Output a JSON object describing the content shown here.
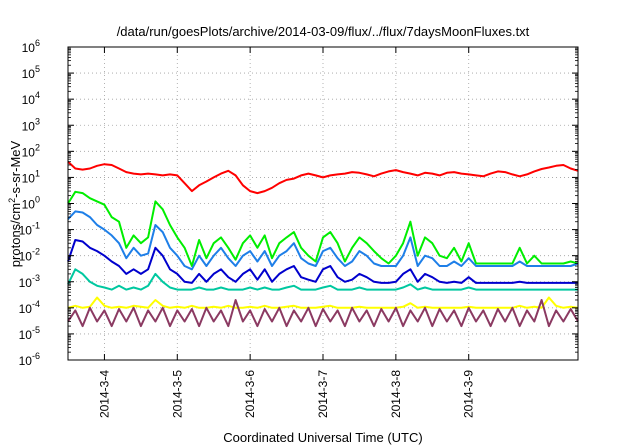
{
  "chart_data": {
    "type": "line",
    "title": "/data/run/goesPlots/archive/2014-03-09/flux/../flux/7daysMoonFluxes.txt",
    "xlabel": "Coordinated Universal Time (UTC)",
    "ylabel": {
      "pre": "protons/cm",
      "sup": "2",
      "post": "-s-sr-MeV"
    },
    "y_scale": "log",
    "ylim": [
      1e-06,
      1000000.0
    ],
    "xlim": [
      3.0,
      10.0
    ],
    "y_ticks": [
      {
        "base": "10",
        "exp": "-6",
        "value": 1e-06
      },
      {
        "base": "10",
        "exp": "-5",
        "value": 1e-05
      },
      {
        "base": "10",
        "exp": "-4",
        "value": 0.0001
      },
      {
        "base": "10",
        "exp": "-3",
        "value": 0.001
      },
      {
        "base": "10",
        "exp": "-2",
        "value": 0.01
      },
      {
        "base": "10",
        "exp": "-1",
        "value": 0.1
      },
      {
        "base": "10",
        "exp": "0",
        "value": 1
      },
      {
        "base": "10",
        "exp": "1",
        "value": 10
      },
      {
        "base": "10",
        "exp": "2",
        "value": 100
      },
      {
        "base": "10",
        "exp": "3",
        "value": 1000
      },
      {
        "base": "10",
        "exp": "4",
        "value": 10000
      },
      {
        "base": "10",
        "exp": "5",
        "value": 100000
      },
      {
        "base": "10",
        "exp": "6",
        "value": 1000000
      }
    ],
    "x_ticks": [
      {
        "label": "2014-3-4",
        "value": 3.5
      },
      {
        "label": "2014-3-5",
        "value": 4.5
      },
      {
        "label": "2014-3-6",
        "value": 5.5
      },
      {
        "label": "2014-3-7",
        "value": 6.5
      },
      {
        "label": "2014-3-8",
        "value": 7.5
      },
      {
        "label": "2014-3-9",
        "value": 8.5
      }
    ],
    "grid": true,
    "series": [
      {
        "color": "#ff0000",
        "x": [
          3.0,
          3.1,
          3.2,
          3.3,
          3.4,
          3.5,
          3.6,
          3.7,
          3.8,
          3.9,
          4.0,
          4.1,
          4.2,
          4.3,
          4.4,
          4.5,
          4.6,
          4.7,
          4.8,
          4.9,
          5.0,
          5.1,
          5.2,
          5.3,
          5.4,
          5.5,
          5.6,
          5.7,
          5.8,
          5.9,
          6.0,
          6.1,
          6.2,
          6.3,
          6.4,
          6.5,
          6.6,
          6.7,
          6.8,
          6.9,
          7.0,
          7.1,
          7.2,
          7.3,
          7.4,
          7.5,
          7.6,
          7.7,
          7.8,
          7.9,
          8.0,
          8.1,
          8.2,
          8.3,
          8.4,
          8.5,
          8.6,
          8.7,
          8.8,
          8.9,
          9.0,
          9.1,
          9.2,
          9.3,
          9.4,
          9.5,
          9.6,
          9.7,
          9.8,
          9.9,
          10.0
        ],
        "y": [
          40,
          22,
          20,
          22,
          28,
          32,
          30,
          22,
          16,
          14,
          13,
          14,
          13,
          12,
          13,
          12,
          6,
          3,
          5,
          7,
          10,
          14,
          18,
          12,
          5,
          3,
          2.5,
          3,
          4,
          6,
          8,
          9,
          12,
          14,
          12,
          10,
          12,
          13,
          14,
          16,
          15,
          13,
          11,
          14,
          17,
          19,
          16,
          14,
          12,
          15,
          14,
          12,
          15,
          16,
          14,
          13,
          12,
          11,
          14,
          17,
          16,
          13,
          11,
          13,
          17,
          21,
          24,
          28,
          30,
          22,
          18
        ]
      },
      {
        "color": "#00ee00",
        "x": [
          3.0,
          3.1,
          3.2,
          3.3,
          3.4,
          3.5,
          3.6,
          3.7,
          3.8,
          3.9,
          4.0,
          4.1,
          4.2,
          4.3,
          4.4,
          4.5,
          4.6,
          4.7,
          4.8,
          4.9,
          5.0,
          5.1,
          5.2,
          5.3,
          5.4,
          5.5,
          5.6,
          5.7,
          5.8,
          5.9,
          6.0,
          6.1,
          6.2,
          6.3,
          6.4,
          6.5,
          6.6,
          6.7,
          6.8,
          6.9,
          7.0,
          7.1,
          7.2,
          7.3,
          7.4,
          7.5,
          7.6,
          7.7,
          7.8,
          7.9,
          8.0,
          8.1,
          8.2,
          8.3,
          8.4,
          8.5,
          8.6,
          8.7,
          8.8,
          8.9,
          9.0,
          9.1,
          9.2,
          9.3,
          9.4,
          9.5,
          9.6,
          9.7,
          9.8,
          9.9,
          10.0
        ],
        "y": [
          1.0,
          2.8,
          2.5,
          1.6,
          1.2,
          0.9,
          0.3,
          0.2,
          0.02,
          0.06,
          0.03,
          0.05,
          1.2,
          0.6,
          0.15,
          0.05,
          0.02,
          0.004,
          0.04,
          0.008,
          0.03,
          0.05,
          0.02,
          0.007,
          0.03,
          0.06,
          0.02,
          0.06,
          0.008,
          0.03,
          0.05,
          0.08,
          0.02,
          0.01,
          0.006,
          0.05,
          0.08,
          0.03,
          0.006,
          0.02,
          0.05,
          0.03,
          0.015,
          0.008,
          0.005,
          0.01,
          0.03,
          0.2,
          0.01,
          0.05,
          0.03,
          0.01,
          0.008,
          0.02,
          0.006,
          0.03,
          0.005,
          0.005,
          0.005,
          0.005,
          0.005,
          0.005,
          0.02,
          0.005,
          0.01,
          0.005,
          0.005,
          0.005,
          0.005,
          0.006,
          0.005
        ]
      },
      {
        "color": "#1e7fe8",
        "x": [
          3.0,
          3.1,
          3.2,
          3.3,
          3.4,
          3.5,
          3.6,
          3.7,
          3.8,
          3.9,
          4.0,
          4.1,
          4.2,
          4.3,
          4.4,
          4.5,
          4.6,
          4.7,
          4.8,
          4.9,
          5.0,
          5.1,
          5.2,
          5.3,
          5.4,
          5.5,
          5.6,
          5.7,
          5.8,
          5.9,
          6.0,
          6.1,
          6.2,
          6.3,
          6.4,
          6.5,
          6.6,
          6.7,
          6.8,
          6.9,
          7.0,
          7.1,
          7.2,
          7.3,
          7.4,
          7.5,
          7.6,
          7.7,
          7.8,
          7.9,
          8.0,
          8.1,
          8.2,
          8.3,
          8.4,
          8.5,
          8.6,
          8.7,
          8.8,
          8.9,
          9.0,
          9.1,
          9.2,
          9.3,
          9.4,
          9.5,
          9.6,
          9.7,
          9.8,
          9.9,
          10.0
        ],
        "y": [
          0.25,
          0.5,
          0.45,
          0.3,
          0.15,
          0.1,
          0.06,
          0.03,
          0.008,
          0.02,
          0.01,
          0.012,
          0.15,
          0.08,
          0.02,
          0.01,
          0.004,
          0.003,
          0.01,
          0.004,
          0.01,
          0.02,
          0.008,
          0.004,
          0.01,
          0.015,
          0.006,
          0.015,
          0.004,
          0.01,
          0.015,
          0.03,
          0.008,
          0.005,
          0.004,
          0.015,
          0.02,
          0.008,
          0.004,
          0.006,
          0.015,
          0.01,
          0.005,
          0.004,
          0.004,
          0.004,
          0.01,
          0.05,
          0.004,
          0.01,
          0.008,
          0.004,
          0.004,
          0.006,
          0.004,
          0.008,
          0.004,
          0.004,
          0.004,
          0.004,
          0.004,
          0.004,
          0.006,
          0.004,
          0.004,
          0.004,
          0.004,
          0.004,
          0.004,
          0.004,
          0.005
        ]
      },
      {
        "color": "#0000cd",
        "x": [
          3.0,
          3.1,
          3.2,
          3.3,
          3.4,
          3.5,
          3.6,
          3.7,
          3.8,
          3.9,
          4.0,
          4.1,
          4.2,
          4.3,
          4.4,
          4.5,
          4.6,
          4.7,
          4.8,
          4.9,
          5.0,
          5.1,
          5.2,
          5.3,
          5.4,
          5.5,
          5.6,
          5.7,
          5.8,
          5.9,
          6.0,
          6.1,
          6.2,
          6.3,
          6.4,
          6.5,
          6.6,
          6.7,
          6.8,
          6.9,
          7.0,
          7.1,
          7.2,
          7.3,
          7.4,
          7.5,
          7.6,
          7.7,
          7.8,
          7.9,
          8.0,
          8.1,
          8.2,
          8.3,
          8.4,
          8.5,
          8.6,
          8.7,
          8.8,
          8.9,
          9.0,
          9.1,
          9.2,
          9.3,
          9.4,
          9.5,
          9.6,
          9.7,
          9.8,
          9.9,
          10.0
        ],
        "y": [
          0.006,
          0.04,
          0.035,
          0.02,
          0.015,
          0.01,
          0.006,
          0.004,
          0.002,
          0.003,
          0.002,
          0.003,
          0.02,
          0.01,
          0.003,
          0.002,
          0.001,
          0.0009,
          0.002,
          0.001,
          0.002,
          0.003,
          0.0015,
          0.001,
          0.002,
          0.003,
          0.0012,
          0.003,
          0.001,
          0.002,
          0.003,
          0.004,
          0.0015,
          0.0012,
          0.001,
          0.003,
          0.004,
          0.0015,
          0.001,
          0.0012,
          0.002,
          0.0015,
          0.001,
          0.0009,
          0.0009,
          0.001,
          0.002,
          0.003,
          0.001,
          0.002,
          0.0015,
          0.001,
          0.0009,
          0.001,
          0.0009,
          0.0015,
          0.0009,
          0.0009,
          0.0009,
          0.0009,
          0.0009,
          0.0009,
          0.001,
          0.0009,
          0.0009,
          0.0009,
          0.0009,
          0.0009,
          0.0009,
          0.0009,
          0.0009
        ]
      },
      {
        "color": "#00c8a0",
        "x": [
          3.0,
          3.1,
          3.2,
          3.3,
          3.4,
          3.5,
          3.6,
          3.7,
          3.8,
          3.9,
          4.0,
          4.1,
          4.2,
          4.3,
          4.4,
          4.5,
          4.6,
          4.7,
          4.8,
          4.9,
          5.0,
          5.1,
          5.2,
          5.3,
          5.4,
          5.5,
          5.6,
          5.7,
          5.8,
          5.9,
          6.0,
          6.1,
          6.2,
          6.3,
          6.4,
          6.5,
          6.6,
          6.7,
          6.8,
          6.9,
          7.0,
          7.1,
          7.2,
          7.3,
          7.4,
          7.5,
          7.6,
          7.7,
          7.8,
          7.9,
          8.0,
          8.1,
          8.2,
          8.3,
          8.4,
          8.5,
          8.6,
          8.7,
          8.8,
          8.9,
          9.0,
          9.1,
          9.2,
          9.3,
          9.4,
          9.5,
          9.6,
          9.7,
          9.8,
          9.9,
          10.0
        ],
        "y": [
          0.0008,
          0.003,
          0.002,
          0.001,
          0.0007,
          0.0006,
          0.0005,
          0.0007,
          0.0005,
          0.0006,
          0.0005,
          0.0007,
          0.002,
          0.001,
          0.0006,
          0.0005,
          0.0005,
          0.0005,
          0.0006,
          0.0005,
          0.0005,
          0.0006,
          0.0005,
          0.0005,
          0.0005,
          0.0006,
          0.0005,
          0.0006,
          0.0005,
          0.0005,
          0.0006,
          0.0007,
          0.0005,
          0.0005,
          0.0005,
          0.0006,
          0.0007,
          0.0005,
          0.0005,
          0.0005,
          0.0006,
          0.0005,
          0.0005,
          0.0005,
          0.0005,
          0.0005,
          0.0006,
          0.0008,
          0.0005,
          0.0006,
          0.0005,
          0.0005,
          0.0005,
          0.0005,
          0.0005,
          0.0006,
          0.0005,
          0.0005,
          0.0005,
          0.0005,
          0.0005,
          0.0005,
          0.0005,
          0.0005,
          0.0005,
          0.0005,
          0.0005,
          0.0005,
          0.0005,
          0.0005,
          0.0005
        ]
      },
      {
        "color": "#ffff00",
        "x": [
          3.0,
          3.1,
          3.2,
          3.3,
          3.4,
          3.5,
          3.6,
          3.7,
          3.8,
          3.9,
          4.0,
          4.1,
          4.2,
          4.3,
          4.4,
          4.5,
          4.6,
          4.7,
          4.8,
          4.9,
          5.0,
          5.1,
          5.2,
          5.3,
          5.4,
          5.5,
          5.6,
          5.7,
          5.8,
          5.9,
          6.0,
          6.1,
          6.2,
          6.3,
          6.4,
          6.5,
          6.6,
          6.7,
          6.8,
          6.9,
          7.0,
          7.1,
          7.2,
          7.3,
          7.4,
          7.5,
          7.6,
          7.7,
          7.8,
          7.9,
          8.0,
          8.1,
          8.2,
          8.3,
          8.4,
          8.5,
          8.6,
          8.7,
          8.8,
          8.9,
          9.0,
          9.1,
          9.2,
          9.3,
          9.4,
          9.5,
          9.6,
          9.7,
          9.8,
          9.9,
          10.0
        ],
        "y": [
          0.0001,
          0.00012,
          0.0001,
          0.00011,
          0.00025,
          0.00012,
          0.0001,
          0.00011,
          0.0001,
          0.00012,
          0.00011,
          0.0001,
          0.0002,
          0.00012,
          0.0001,
          0.00011,
          0.0001,
          0.00012,
          0.0001,
          0.0001,
          0.00011,
          0.0001,
          0.00012,
          0.0001,
          0.0001,
          0.00011,
          0.0001,
          0.00012,
          0.0001,
          0.0001,
          0.00011,
          0.00012,
          0.0001,
          0.0001,
          0.0001,
          0.00011,
          0.00012,
          0.0001,
          0.0001,
          0.0001,
          0.00011,
          0.0001,
          0.0001,
          0.0001,
          0.0001,
          0.0001,
          0.00011,
          0.00015,
          0.0001,
          0.00011,
          0.0001,
          0.0001,
          0.0001,
          0.0001,
          0.0001,
          0.00011,
          0.0001,
          0.0001,
          0.0001,
          0.0001,
          0.0001,
          0.0001,
          0.00012,
          0.0001,
          0.00011,
          0.0001,
          0.00025,
          0.00012,
          0.0001,
          0.00011,
          0.0001
        ]
      },
      {
        "color": "#8b3a62",
        "x": [
          3.0,
          3.1,
          3.2,
          3.3,
          3.4,
          3.5,
          3.6,
          3.7,
          3.8,
          3.9,
          4.0,
          4.1,
          4.2,
          4.3,
          4.4,
          4.5,
          4.6,
          4.7,
          4.8,
          4.9,
          5.0,
          5.1,
          5.2,
          5.3,
          5.4,
          5.5,
          5.6,
          5.7,
          5.8,
          5.9,
          6.0,
          6.1,
          6.2,
          6.3,
          6.4,
          6.5,
          6.6,
          6.7,
          6.8,
          6.9,
          7.0,
          7.1,
          7.2,
          7.3,
          7.4,
          7.5,
          7.6,
          7.7,
          7.8,
          7.9,
          8.0,
          8.1,
          8.2,
          8.3,
          8.4,
          8.5,
          8.6,
          8.7,
          8.8,
          8.9,
          9.0,
          9.1,
          9.2,
          9.3,
          9.4,
          9.5,
          9.6,
          9.7,
          9.8,
          9.9,
          10.0
        ],
        "y": [
          3e-05,
          8e-05,
          2e-05,
          0.0001,
          3e-05,
          8e-05,
          2e-05,
          9e-05,
          3e-05,
          0.0001,
          2e-05,
          8e-05,
          3e-05,
          0.0001,
          2e-05,
          8e-05,
          3e-05,
          9e-05,
          2e-05,
          0.0001,
          3e-05,
          8e-05,
          2e-05,
          0.0002,
          3e-05,
          8e-05,
          2e-05,
          9e-05,
          3e-05,
          0.0001,
          2e-05,
          8e-05,
          3e-05,
          0.0001,
          2e-05,
          9e-05,
          3e-05,
          8e-05,
          2e-05,
          0.0001,
          3e-05,
          8e-05,
          2e-05,
          9e-05,
          3e-05,
          0.0001,
          2e-05,
          8e-05,
          3e-05,
          0.0001,
          2e-05,
          9e-05,
          3e-05,
          8e-05,
          2e-05,
          0.0001,
          3e-05,
          8e-05,
          2e-05,
          9e-05,
          3e-05,
          0.0001,
          2e-05,
          8e-05,
          3e-05,
          0.0002,
          2e-05,
          8e-05,
          3e-05,
          9e-05,
          3e-05
        ]
      }
    ]
  }
}
